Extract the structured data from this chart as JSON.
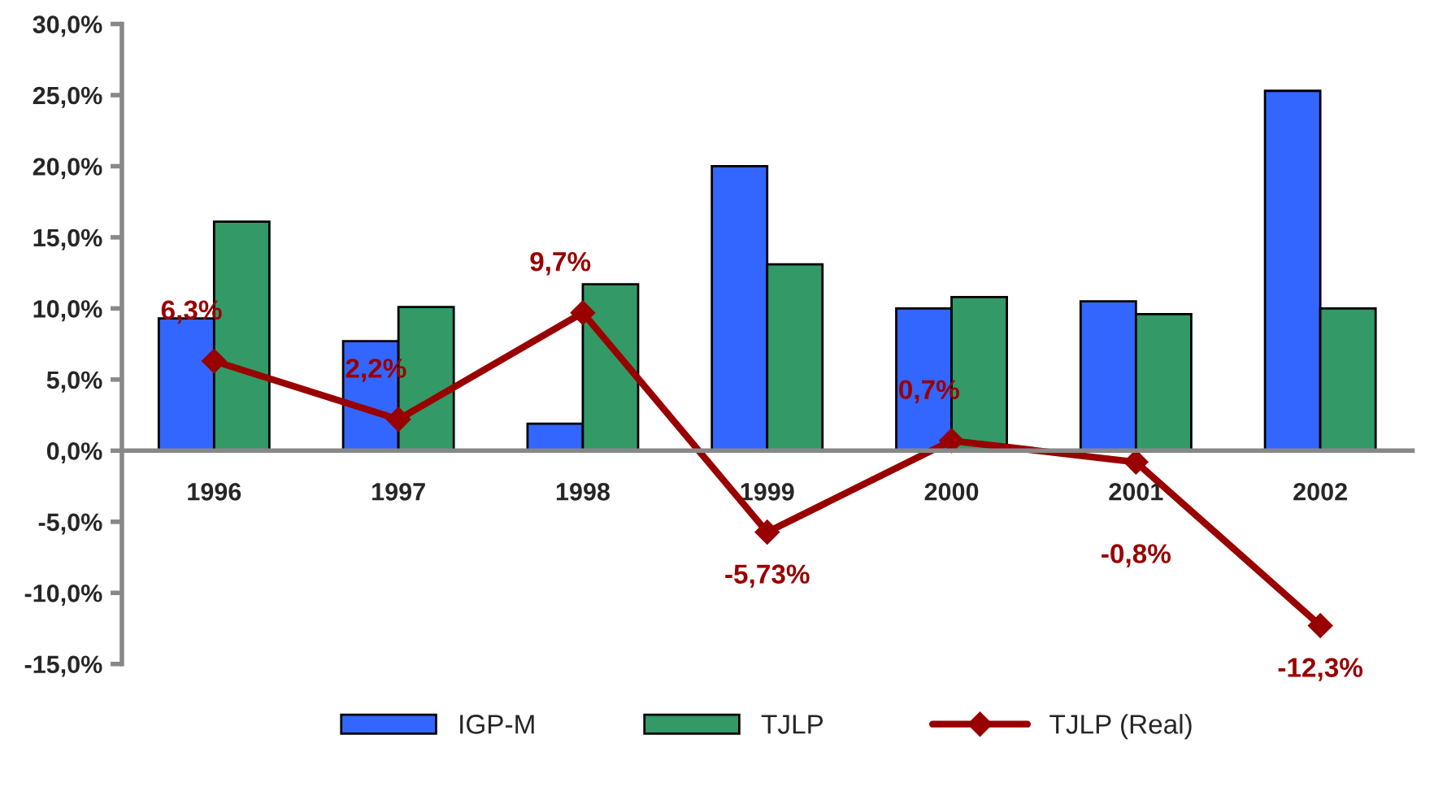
{
  "chart_data": {
    "type": "bar",
    "categories": [
      "1996",
      "1997",
      "1998",
      "1999",
      "2000",
      "2001",
      "2002"
    ],
    "series": [
      {
        "name": "IGP-M",
        "color": "#3366ff",
        "values": [
          9.3,
          7.7,
          1.9,
          20.0,
          10.0,
          10.5,
          25.3
        ]
      },
      {
        "name": "TJLP",
        "color": "#339966",
        "values": [
          16.1,
          10.1,
          11.7,
          13.1,
          10.8,
          9.6,
          10.0
        ]
      },
      {
        "name": "TJLP (Real)",
        "type": "line",
        "color": "#990000",
        "marker": "diamond",
        "values": [
          6.3,
          2.2,
          9.7,
          -5.73,
          0.7,
          -0.8,
          -12.3
        ],
        "value_labels": [
          "6,3%",
          "2,2%",
          "9,7%",
          "-5,73%",
          "0,7%",
          "-0,8%",
          "-12,3%"
        ]
      }
    ],
    "ylim": [
      -15,
      30
    ],
    "yticks": [
      {
        "value": -15,
        "label": "-15,0%"
      },
      {
        "value": -10,
        "label": "-10,0%"
      },
      {
        "value": -5,
        "label": "-5,0%"
      },
      {
        "value": 0,
        "label": "0,0%"
      },
      {
        "value": 5,
        "label": "5,0%"
      },
      {
        "value": 10,
        "label": "10,0%"
      },
      {
        "value": 15,
        "label": "15,0%"
      },
      {
        "value": 20,
        "label": "20,0%"
      },
      {
        "value": 25,
        "label": "25,0%"
      },
      {
        "value": 30,
        "label": "30,0%"
      }
    ],
    "grid": false,
    "legend": "bottom"
  }
}
